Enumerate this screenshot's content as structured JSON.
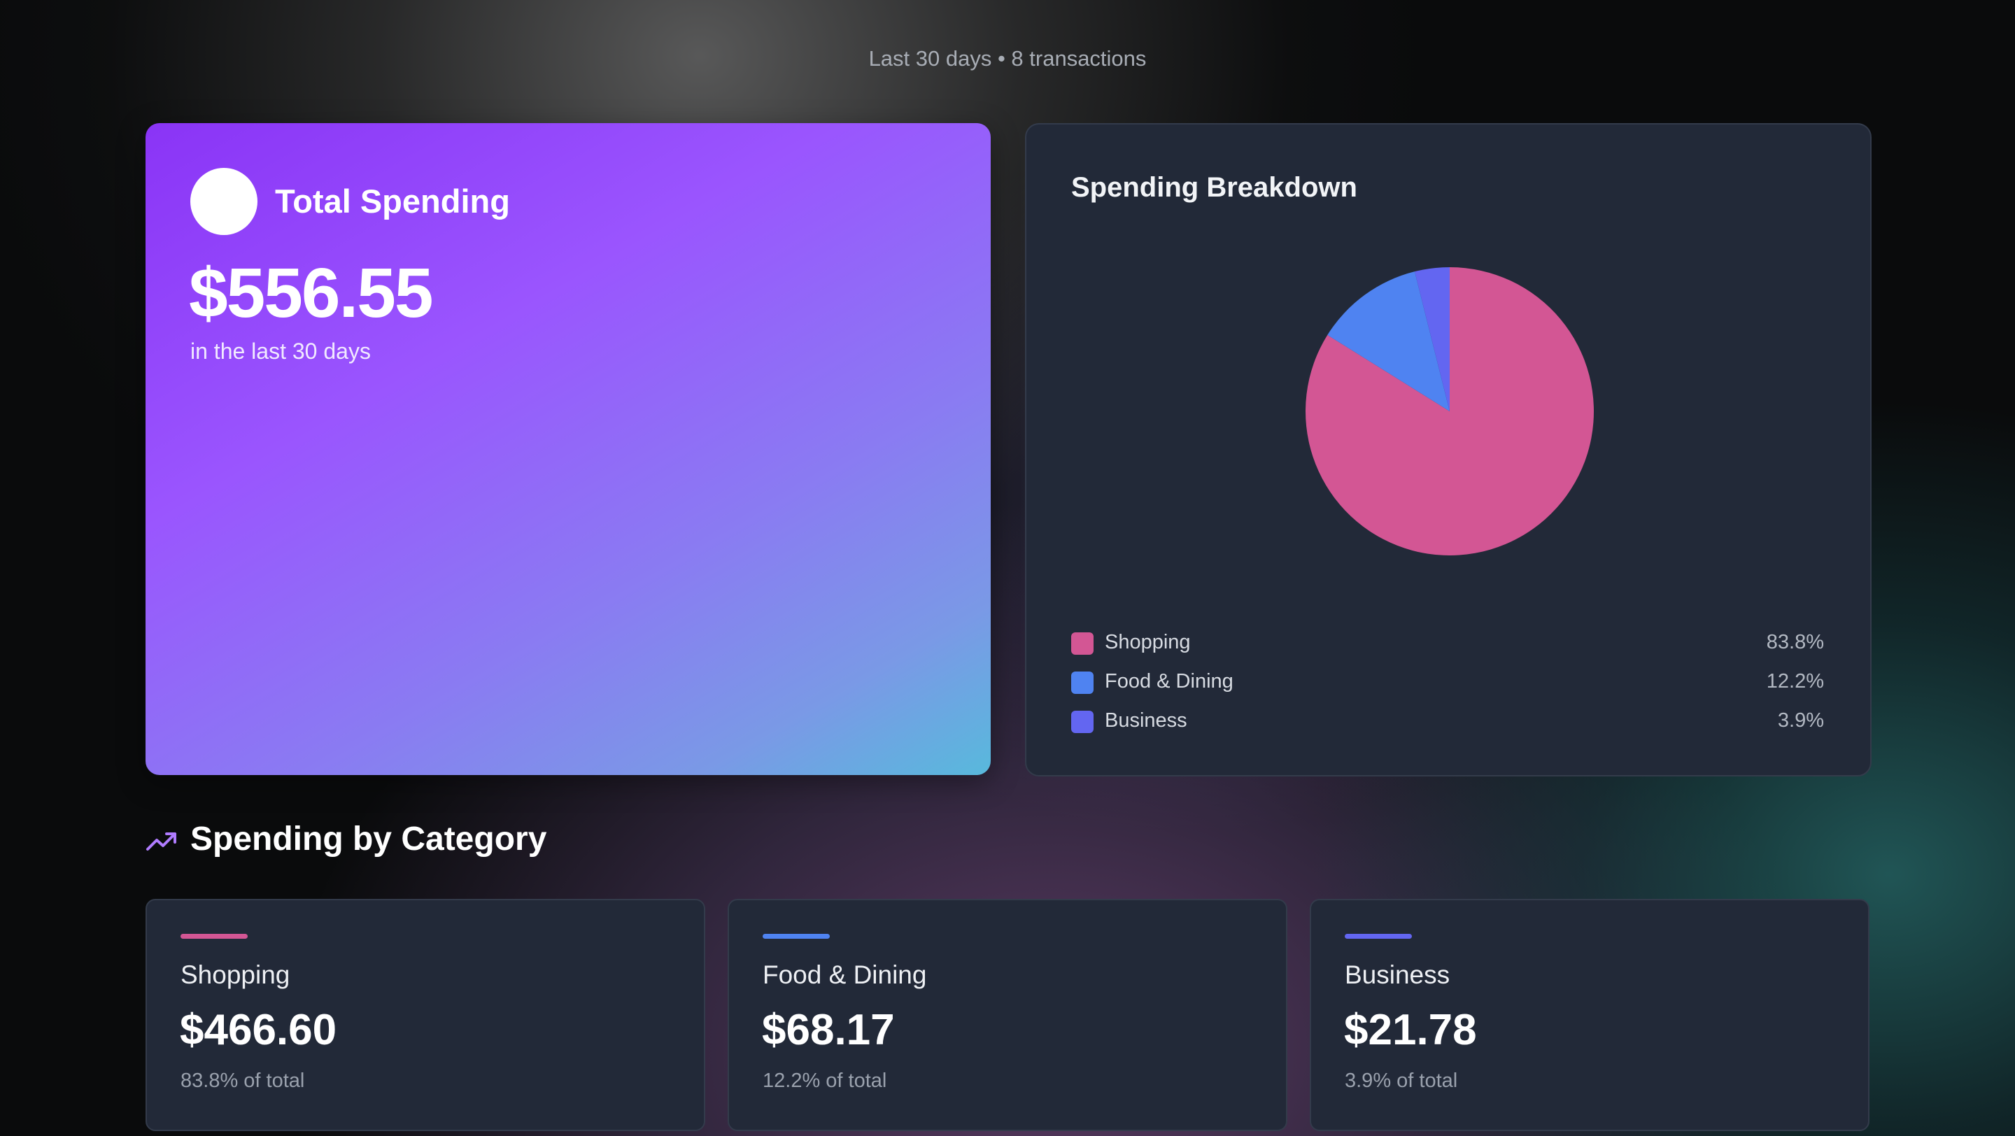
{
  "header": {
    "subtitle": "Last 30 days • 8 transactions"
  },
  "total_card": {
    "title": "Total Spending",
    "amount": "$556.55",
    "caption": "in the last 30 days"
  },
  "breakdown": {
    "title": "Spending Breakdown",
    "legend": [
      {
        "label": "Shopping",
        "percent": "83.8%",
        "color": "#d35694"
      },
      {
        "label": "Food & Dining",
        "percent": "12.2%",
        "color": "#4f83f1"
      },
      {
        "label": "Business",
        "percent": "3.9%",
        "color": "#6366f1"
      }
    ]
  },
  "chart_data": {
    "type": "pie",
    "categories": [
      "Shopping",
      "Food & Dining",
      "Business"
    ],
    "values": [
      83.8,
      12.2,
      3.9
    ],
    "colors": [
      "#d35694",
      "#4f83f1",
      "#6366f1"
    ],
    "title": "Spending Breakdown",
    "legend": "bottom"
  },
  "section": {
    "title": "Spending by Category",
    "icon": "trending-up-icon"
  },
  "categories": [
    {
      "name": "Shopping",
      "amount": "$466.60",
      "percent": "83.8% of total",
      "color": "#d35694"
    },
    {
      "name": "Food & Dining",
      "amount": "$68.17",
      "percent": "12.2% of total",
      "color": "#4f83f1"
    },
    {
      "name": "Business",
      "amount": "$21.78",
      "percent": "3.9% of total",
      "color": "#6366f1"
    }
  ]
}
